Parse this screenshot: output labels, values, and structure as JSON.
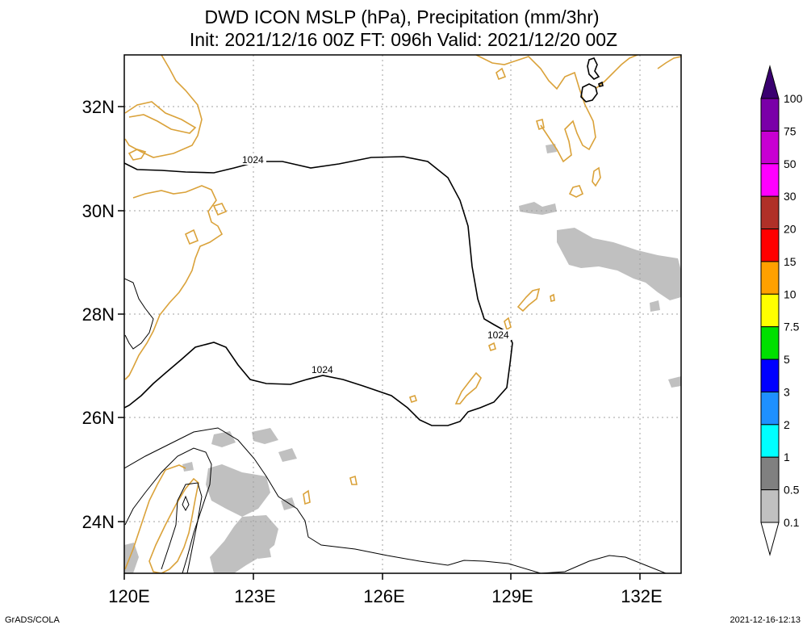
{
  "title": "DWD ICON MSLP (hPa), Precipitation (mm/3hr)",
  "subtitle": "Init: 2021/12/16 00Z  FT: 096h  Valid: 2021/12/20 00Z",
  "lon_labels": [
    "120E",
    "123E",
    "126E",
    "129E",
    "132E"
  ],
  "lat_labels": [
    "32N",
    "30N",
    "28N",
    "26N",
    "24N"
  ],
  "contour_labels": [
    "1024",
    "1024",
    "1024"
  ],
  "colorbar": {
    "labels": [
      "100",
      "75",
      "50",
      "30",
      "20",
      "15",
      "10",
      "7.5",
      "5",
      "3",
      "2",
      "1",
      "0.5",
      "0.1"
    ],
    "colors": [
      "#3a0070",
      "#7a00a8",
      "#c800d2",
      "#ff00ff",
      "#b03028",
      "#ff0000",
      "#ffa000",
      "#ffff00",
      "#00e000",
      "#0000ff",
      "#1e90ff",
      "#00ffff",
      "#808080",
      "#c0c0c0",
      "#ffffff"
    ]
  },
  "colors": {
    "coastline": "#daa23a",
    "isobar": "#000000",
    "precip_light": "#c0c0c0",
    "grid": "#a0a0a0"
  },
  "footer": {
    "left": "GrADS/COLA",
    "right": "2021-12-16-12:13"
  }
}
